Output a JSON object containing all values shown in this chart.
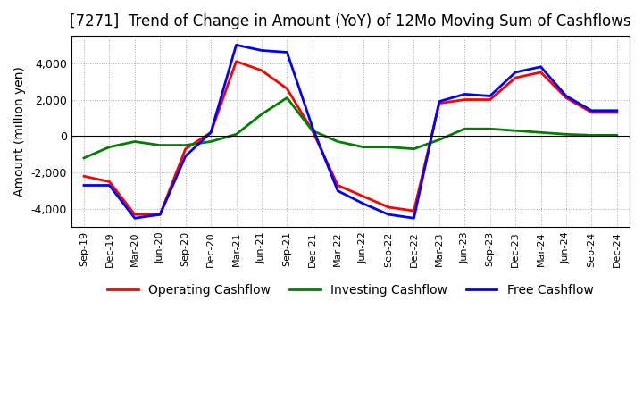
{
  "title": "[7271]  Trend of Change in Amount (YoY) of 12Mo Moving Sum of Cashflows",
  "ylabel": "Amount (million yen)",
  "x_labels": [
    "Sep-19",
    "Dec-19",
    "Mar-20",
    "Jun-20",
    "Sep-20",
    "Dec-20",
    "Mar-21",
    "Jun-21",
    "Sep-21",
    "Dec-21",
    "Mar-22",
    "Jun-22",
    "Sep-22",
    "Dec-22",
    "Mar-23",
    "Jun-23",
    "Sep-23",
    "Dec-23",
    "Mar-24",
    "Jun-24",
    "Sep-24",
    "Dec-24"
  ],
  "operating": [
    -2200,
    -2500,
    -4300,
    -4300,
    -700,
    200,
    4100,
    3600,
    2600,
    300,
    -2700,
    -3300,
    -3900,
    -4100,
    1800,
    2000,
    2000,
    3200,
    3500,
    2100,
    1300,
    1300
  ],
  "investing": [
    -1200,
    -600,
    -300,
    -500,
    -500,
    -300,
    100,
    1200,
    2100,
    300,
    -300,
    -600,
    -600,
    -700,
    -200,
    400,
    400,
    300,
    200,
    100,
    50,
    50
  ],
  "free": [
    -2700,
    -2700,
    -4500,
    -4300,
    -1100,
    200,
    5000,
    4700,
    4600,
    500,
    -3000,
    -3700,
    -4300,
    -4500,
    1900,
    2300,
    2200,
    3500,
    3800,
    2200,
    1400,
    1400
  ],
  "operating_color": "#ff0000",
  "investing_color": "#008000",
  "free_color": "#0000ff",
  "ylim": [
    -5000,
    5500
  ],
  "yticks": [
    -4000,
    -2000,
    0,
    2000,
    4000
  ],
  "grid_color": "#aaaaaa",
  "background_color": "#ffffff",
  "title_fontsize": 12,
  "axis_fontsize": 10,
  "legend_fontsize": 10,
  "line_width": 2.0
}
